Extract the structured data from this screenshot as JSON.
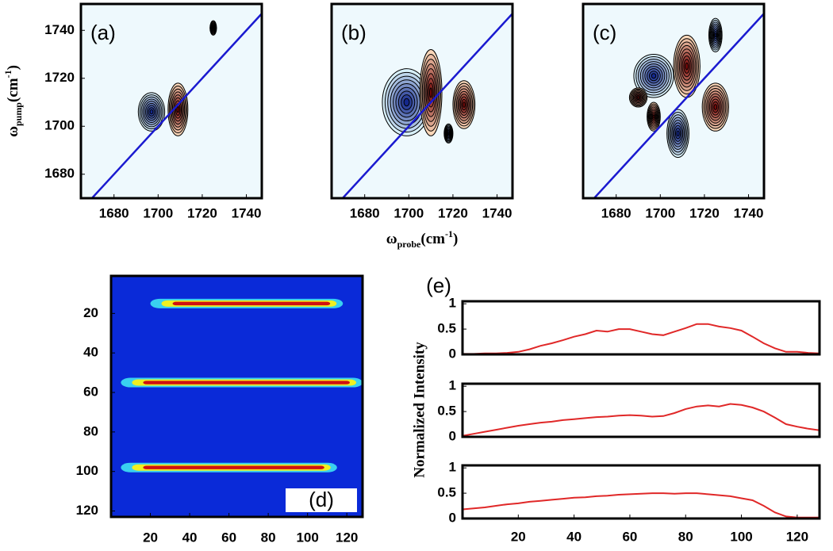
{
  "chart_data": [
    {
      "type": "contour",
      "label": "(a)",
      "xlim": [
        1665,
        1747
      ],
      "ylim": [
        1670,
        1751
      ],
      "xticks": [
        1680,
        1700,
        1720,
        1740
      ],
      "yticks": [
        1680,
        1700,
        1720,
        1740
      ],
      "ylabel": {
        "symbol": "ω",
        "subscript": "pump",
        "unit": "(cm",
        "superscript": "-1",
        "close": ")"
      },
      "background": "#eef9fd",
      "diagonal_color": "#1a1ad0",
      "colors": {
        "negative": [
          "#d7f0fa",
          "#14288c"
        ],
        "positive": [
          "#fad7b9",
          "#780a0a"
        ]
      },
      "peaks": [
        {
          "x": 1697,
          "y": 1706,
          "rx": 6,
          "ry": 8,
          "sign": -1
        },
        {
          "x": 1709,
          "y": 1707,
          "rx": 4.5,
          "ry": 11,
          "sign": 1
        },
        {
          "x": 1725,
          "y": 1741,
          "rx": 1.5,
          "ry": 3,
          "sign": 1
        }
      ]
    },
    {
      "type": "contour",
      "label": "(b)",
      "xlim": [
        1665,
        1747
      ],
      "ylim": [
        1670,
        1751
      ],
      "xticks": [
        1680,
        1700,
        1720,
        1740
      ],
      "xlabel": {
        "symbol": "ω",
        "subscript": "probe",
        "unit": "(cm",
        "superscript": "-1",
        "close": ")"
      },
      "background": "#eef9fd",
      "diagonal_color": "#1a1ad0",
      "colors": {
        "negative": [
          "#d7f0fa",
          "#14288c"
        ],
        "positive": [
          "#fad7b9",
          "#780a0a"
        ]
      },
      "peaks": [
        {
          "x": 1699,
          "y": 1710,
          "rx": 11,
          "ry": 14,
          "sign": -1
        },
        {
          "x": 1710,
          "y": 1714,
          "rx": 5,
          "ry": 18,
          "sign": 1
        },
        {
          "x": 1725,
          "y": 1709,
          "rx": 5,
          "ry": 10,
          "sign": 1
        },
        {
          "x": 1718,
          "y": 1697,
          "rx": 2,
          "ry": 4,
          "sign": -1
        }
      ]
    },
    {
      "type": "contour",
      "label": "(c)",
      "xlim": [
        1665,
        1747
      ],
      "ylim": [
        1670,
        1751
      ],
      "xticks": [
        1680,
        1700,
        1720,
        1740
      ],
      "background": "#eef9fd",
      "diagonal_color": "#1a1ad0",
      "colors": {
        "negative": [
          "#d7f0fa",
          "#14288c"
        ],
        "positive": [
          "#fad7b9",
          "#780a0a"
        ]
      },
      "peaks": [
        {
          "x": 1697,
          "y": 1721,
          "rx": 9,
          "ry": 9,
          "sign": -1
        },
        {
          "x": 1712,
          "y": 1725,
          "rx": 6,
          "ry": 13,
          "sign": 1
        },
        {
          "x": 1725,
          "y": 1738,
          "rx": 3,
          "ry": 7,
          "sign": -1
        },
        {
          "x": 1725,
          "y": 1708,
          "rx": 6,
          "ry": 10,
          "sign": 1
        },
        {
          "x": 1708,
          "y": 1697,
          "rx": 5,
          "ry": 10,
          "sign": -1
        },
        {
          "x": 1697,
          "y": 1704,
          "rx": 3,
          "ry": 6,
          "sign": 1
        },
        {
          "x": 1690,
          "y": 1712,
          "rx": 4,
          "ry": 4,
          "sign": 1
        }
      ]
    },
    {
      "type": "heatmap",
      "label": "(d)",
      "xlim": [
        0,
        128
      ],
      "ylim": [
        1,
        123
      ],
      "y_inverted": true,
      "xticks": [
        20,
        40,
        60,
        80,
        100,
        120
      ],
      "yticks": [
        20,
        40,
        60,
        80,
        100,
        120
      ],
      "background": "#0a2ad8",
      "band_colors": [
        "#39d0f0",
        "#f0f020",
        "#d01010"
      ],
      "bands": [
        {
          "y": 15,
          "x0": 20,
          "x1": 118
        },
        {
          "y": 55,
          "x0": 5,
          "x1": 128
        },
        {
          "y": 98,
          "x0": 5,
          "x1": 115
        }
      ]
    },
    {
      "type": "line",
      "label": "(e)",
      "ylabel": "Normalized Intensity",
      "xlim": [
        0,
        128
      ],
      "ylim": [
        0,
        1.05
      ],
      "xticks": [
        20,
        40,
        60,
        80,
        100,
        120
      ],
      "yticks": [
        0,
        0.5,
        1
      ],
      "x": [
        0,
        4,
        8,
        12,
        16,
        20,
        24,
        28,
        32,
        36,
        40,
        44,
        48,
        52,
        56,
        60,
        64,
        68,
        72,
        76,
        80,
        84,
        88,
        92,
        96,
        100,
        104,
        108,
        112,
        116,
        120,
        124,
        128
      ],
      "series": [
        {
          "color": "#e02828",
          "values": [
            0.01,
            0.01,
            0.02,
            0.02,
            0.03,
            0.05,
            0.1,
            0.17,
            0.22,
            0.28,
            0.35,
            0.4,
            0.47,
            0.45,
            0.5,
            0.5,
            0.45,
            0.4,
            0.38,
            0.45,
            0.52,
            0.6,
            0.6,
            0.55,
            0.52,
            0.47,
            0.35,
            0.22,
            0.12,
            0.05,
            0.05,
            0.03,
            0.02
          ]
        },
        {
          "color": "#e02828",
          "values": [
            0.02,
            0.06,
            0.1,
            0.14,
            0.18,
            0.22,
            0.25,
            0.28,
            0.3,
            0.33,
            0.35,
            0.37,
            0.39,
            0.4,
            0.42,
            0.43,
            0.42,
            0.4,
            0.41,
            0.47,
            0.55,
            0.6,
            0.62,
            0.6,
            0.65,
            0.63,
            0.58,
            0.5,
            0.38,
            0.25,
            0.2,
            0.16,
            0.13
          ]
        },
        {
          "color": "#e02828",
          "values": [
            0.18,
            0.2,
            0.22,
            0.25,
            0.28,
            0.3,
            0.33,
            0.35,
            0.37,
            0.39,
            0.41,
            0.42,
            0.44,
            0.45,
            0.47,
            0.48,
            0.49,
            0.5,
            0.5,
            0.49,
            0.5,
            0.5,
            0.48,
            0.46,
            0.44,
            0.4,
            0.36,
            0.25,
            0.12,
            0.04,
            0.02,
            0.02,
            0.02
          ]
        }
      ]
    }
  ]
}
